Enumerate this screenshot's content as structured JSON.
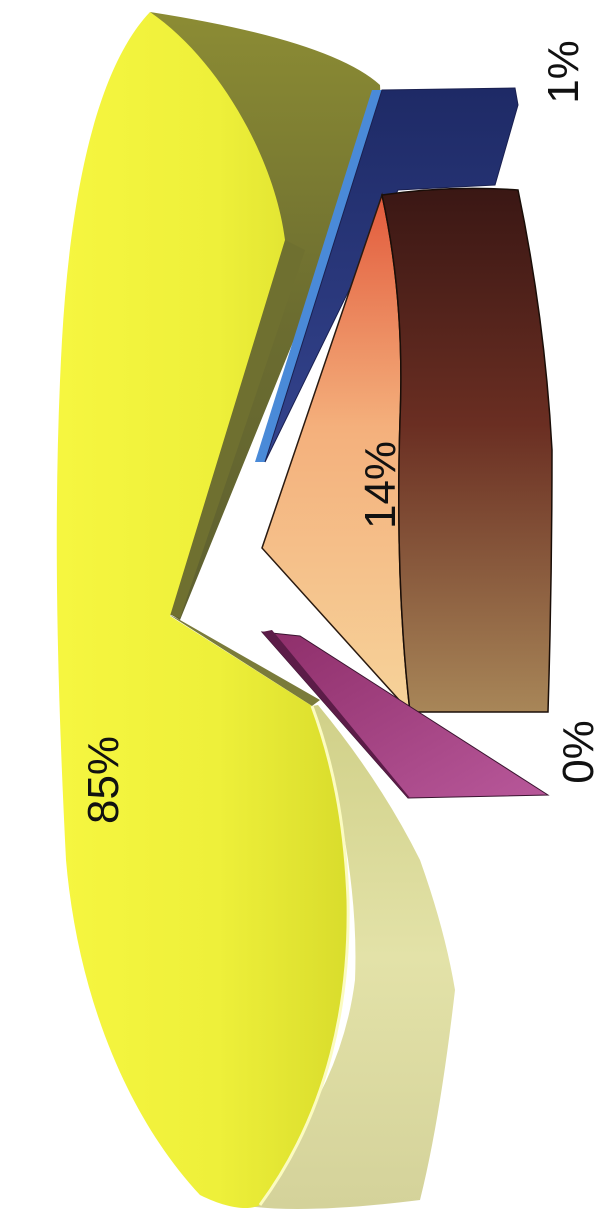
{
  "chart_data": {
    "type": "pie",
    "style": "3d-exploded",
    "orientation": "rotated-90",
    "legend": "none",
    "slices": [
      {
        "label": "85%",
        "value": 85,
        "color": "#e8ea2e",
        "exploded": false
      },
      {
        "label": "1%",
        "value": 1,
        "color": "#2f3e86",
        "exploded": true
      },
      {
        "label": "14%",
        "value": 14,
        "color": "#8a3a2e",
        "exploded": true
      },
      {
        "label": "0%",
        "value": 0,
        "color": "#a8407e",
        "exploded": true
      }
    ]
  }
}
